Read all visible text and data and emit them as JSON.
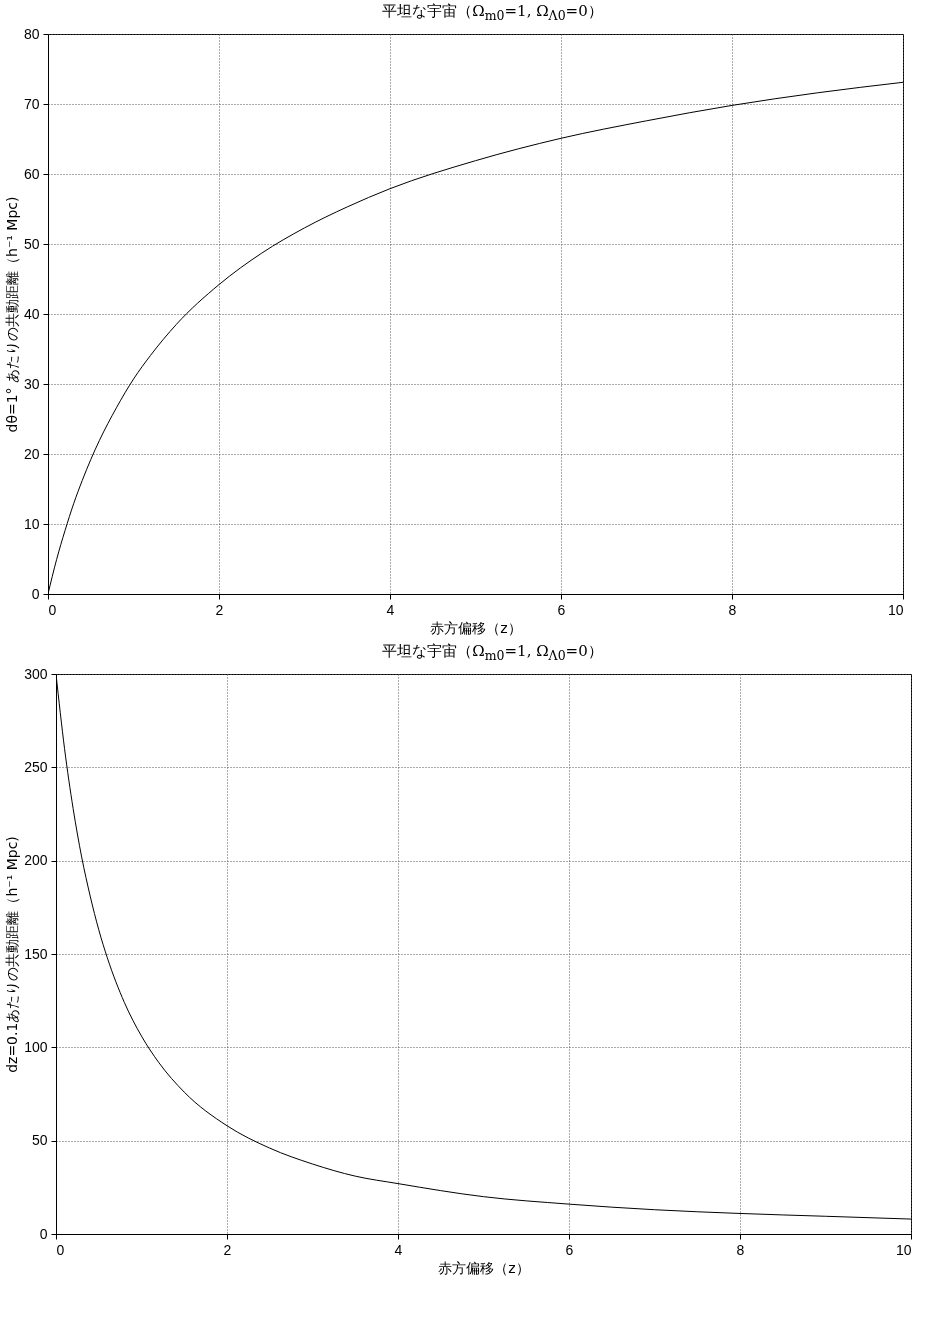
{
  "chart_data": [
    {
      "type": "line",
      "title": "平坦な宇宙（Ω$_{m0}$=1, Ω$_{Λ0}$=0）",
      "xlabel": "赤方偏移（z）",
      "ylabel": "dθ=1° あたりの共動距離（h⁻¹ Mpc)",
      "x": [
        0,
        0.1,
        0.2,
        0.3,
        0.4,
        0.5,
        0.6,
        0.8,
        1,
        1.2,
        1.5,
        2,
        2.5,
        3,
        3.5,
        4,
        5,
        6,
        7,
        8,
        9,
        10
      ],
      "series": [
        {
          "color": "#000000",
          "values": [
            0,
            4.9,
            9.1,
            12.9,
            16.2,
            19.2,
            21.9,
            26.6,
            30.7,
            34.1,
            38.5,
            44.2,
            48.7,
            52.3,
            55.3,
            57.9,
            61.9,
            65.1,
            67.6,
            69.8,
            71.6,
            73.1
          ]
        }
      ],
      "xlim": [
        0,
        10
      ],
      "xticks": [
        0,
        2,
        4,
        6,
        8,
        10
      ],
      "ylim": [
        0,
        80
      ],
      "yticks": [
        0,
        10,
        20,
        30,
        40,
        50,
        60,
        70,
        80
      ],
      "grid": true,
      "line_style": "solid"
    },
    {
      "type": "line",
      "title": "平坦な宇宙（Ω$_{m0}$=1, Ω$_{Λ0}$=0）",
      "xlabel": "赤方偏移（z）",
      "ylabel": "dz=0.1あたりの共動距離（h⁻¹ Mpc)",
      "x": [
        0,
        0.1,
        0.2,
        0.3,
        0.4,
        0.5,
        0.6,
        0.8,
        1,
        1.2,
        1.5,
        2,
        2.5,
        3,
        3.5,
        4,
        5,
        6,
        7,
        8,
        9,
        10
      ],
      "series": [
        {
          "color": "#000000",
          "values": [
            300,
            260,
            228,
            202,
            181,
            163,
            148,
            124,
            106,
            92,
            76,
            58,
            46,
            37.5,
            31,
            27,
            20,
            16,
            13,
            11,
            9.5,
            8
          ]
        }
      ],
      "xlim": [
        0,
        10
      ],
      "xticks": [
        0,
        2,
        4,
        6,
        8,
        10
      ],
      "ylim": [
        0,
        300
      ],
      "yticks": [
        0,
        50,
        100,
        150,
        200,
        250,
        300
      ],
      "grid": true,
      "line_style": "solid"
    }
  ]
}
